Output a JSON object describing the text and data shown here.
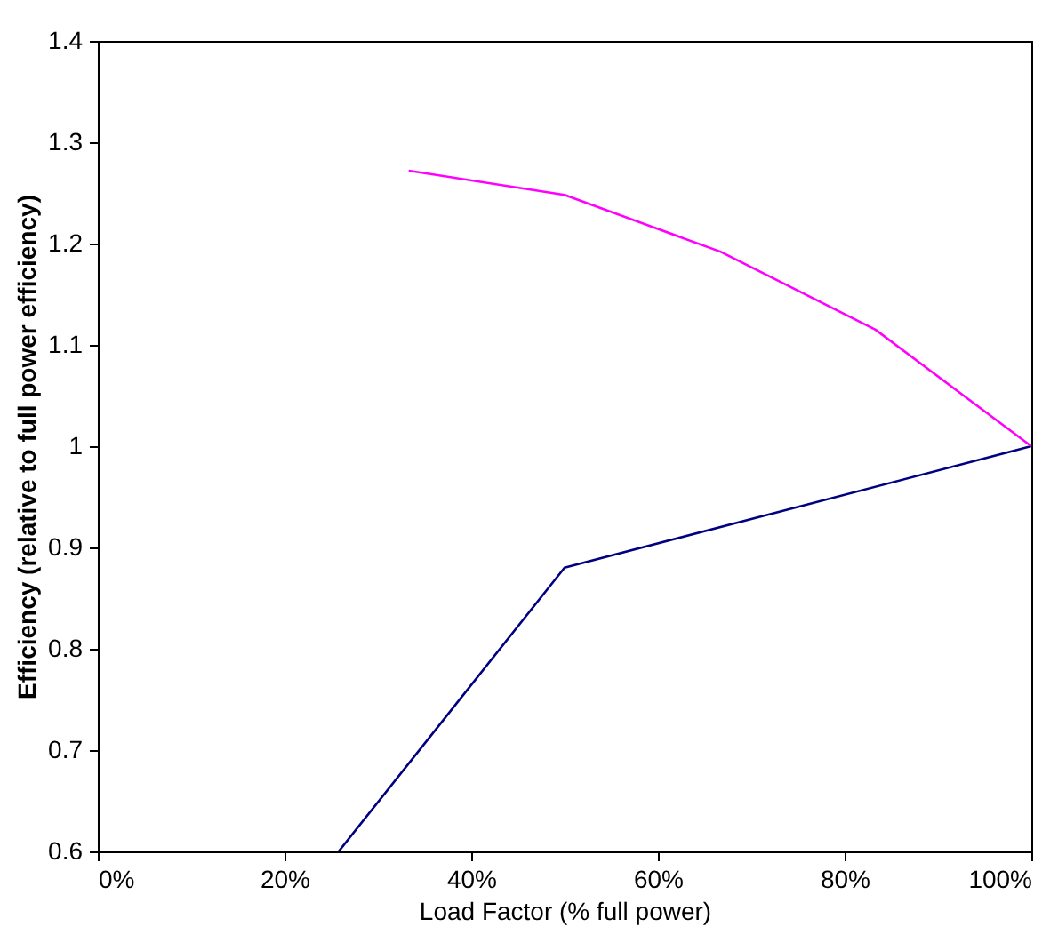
{
  "chart_data": {
    "type": "line",
    "xlabel": "Load Factor (% full power)",
    "ylabel": "Efficiency (relative to full power efficiency)",
    "xlim": [
      0,
      100
    ],
    "ylim": [
      0.6,
      1.4
    ],
    "xticks": [
      {
        "value": 0,
        "label": "0%"
      },
      {
        "value": 20,
        "label": "20%"
      },
      {
        "value": 40,
        "label": "40%"
      },
      {
        "value": 60,
        "label": "60%"
      },
      {
        "value": 80,
        "label": "80%"
      },
      {
        "value": 100,
        "label": "100%"
      }
    ],
    "yticks": [
      0.6,
      0.7,
      0.8,
      0.9,
      1,
      1.1,
      1.2,
      1.3,
      1.4
    ],
    "grid": false,
    "marker": "none",
    "line_style": "solid",
    "series": [
      {
        "color": "#000080",
        "x": [
          25.8,
          50,
          100
        ],
        "values": [
          0.6,
          0.88,
          1.0
        ]
      },
      {
        "color": "#ff00ff",
        "x": [
          33.3,
          50,
          66.7,
          83.3,
          100
        ],
        "values": [
          1.272,
          1.248,
          1.192,
          1.115,
          1.0
        ]
      }
    ]
  }
}
